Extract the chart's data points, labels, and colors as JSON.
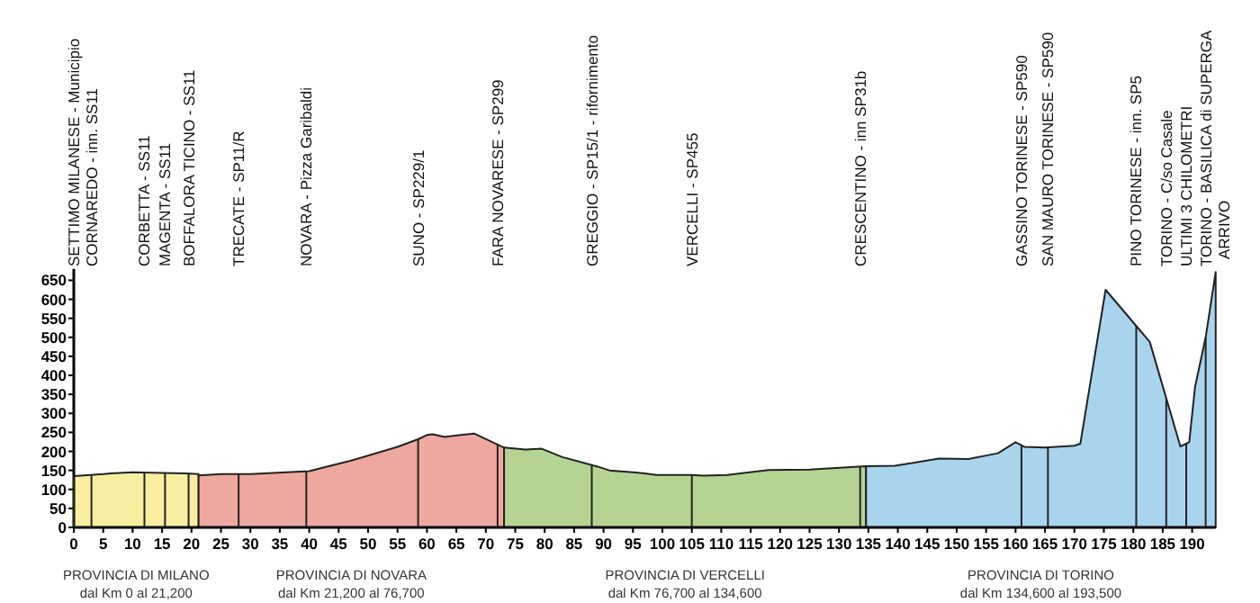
{
  "chart_data": {
    "type": "area",
    "xlim": [
      0,
      194
    ],
    "ylim": [
      0,
      680
    ],
    "xticks": [
      0,
      5,
      10,
      15,
      20,
      25,
      30,
      35,
      40,
      45,
      50,
      55,
      60,
      65,
      70,
      75,
      80,
      85,
      90,
      95,
      100,
      105,
      110,
      115,
      120,
      125,
      130,
      135,
      140,
      145,
      150,
      155,
      160,
      165,
      170,
      175,
      180,
      185,
      190
    ],
    "yticks": [
      0,
      50,
      100,
      150,
      200,
      250,
      300,
      350,
      400,
      450,
      500,
      550,
      600,
      650
    ],
    "grid": false,
    "series": [
      {
        "color": "#f8eea0",
        "x": [
          0,
          5,
          6.3,
          10,
          15,
          19,
          21.2
        ],
        "values": [
          135,
          140,
          142,
          145,
          143,
          142,
          140
        ]
      },
      {
        "color": "#eea8a0",
        "x": [
          21.2,
          25,
          30,
          40,
          43,
          47,
          55,
          58.5,
          60,
          61,
          63,
          68,
          73.1
        ],
        "values": [
          137,
          140,
          140,
          148,
          160,
          175,
          212,
          232,
          243,
          245,
          238,
          247,
          210
        ]
      },
      {
        "color": "#b5d494",
        "x": [
          73.1,
          76.7,
          79.5,
          83,
          89,
          91,
          95,
          97,
          99,
          103,
          105,
          107,
          111,
          118,
          125,
          134.6
        ],
        "values": [
          210,
          205,
          207,
          185,
          160,
          150,
          145,
          142,
          138,
          138,
          138,
          136,
          138,
          151,
          152,
          161
        ]
      },
      {
        "color": "#a8d4ee",
        "x": [
          134.6,
          139.5,
          147,
          152,
          157,
          160,
          161.5,
          165,
          170,
          171,
          175.3,
          182.8,
          188,
          189.5,
          190.5,
          192.3,
          194
        ],
        "values": [
          161,
          162,
          181,
          180,
          195,
          224,
          212,
          210,
          215,
          220,
          625,
          488,
          213,
          224,
          370,
          500,
          672
        ]
      }
    ],
    "annotations": [
      "PROVINCIA DI MILANO\ndal Km 0 al 21,200",
      "PROVINCIA DI NOVARA\ndal Km 21,200 al 76,700",
      "PROVINCIA DI VERCELLI\ndal Km 76,700 al 134,600",
      "PROVINCIA DI TORINO\ndal Km 134,600 al 193,500",
      "SETTIMO MILANESE - Municipio",
      "CORNAREDO - inn. SS11",
      "CORBETTA  - SS11",
      "MAGENTA  - SS11",
      "BOFFALORA TICINO  - SS11",
      "TRECATE - SP11/R",
      "NOVARA - Pizza Garibaldi",
      "SUNO  -  SP229/1",
      "FARA NOVARESE - SP299",
      "GREGGIO  - SP15/1  - rifornimento",
      "VERCELLI   - SP455",
      "CRESCENTINO - inn SP31b",
      "GASSINO TORINESE  - SP590",
      "SAN MAURO TORINESE  - SP590",
      "PINO TORINESE  - inn. SP5",
      "TORINO - C/so Casale",
      "ULTIMI 3 CHILOMETRI",
      "TORINO - BASILICA di SUPERGA\nARRIVO"
    ],
    "ref_lines": [
      {
        "axis": "x",
        "value": 0
      },
      {
        "axis": "x",
        "value": 3
      },
      {
        "axis": "x",
        "value": 12
      },
      {
        "axis": "x",
        "value": 15.5
      },
      {
        "axis": "x",
        "value": 19.5
      },
      {
        "axis": "x",
        "value": 28
      },
      {
        "axis": "x",
        "value": 39.5
      },
      {
        "axis": "x",
        "value": 58.5
      },
      {
        "axis": "x",
        "value": 72
      },
      {
        "axis": "x",
        "value": 88
      },
      {
        "axis": "x",
        "value": 105
      },
      {
        "axis": "x",
        "value": 133.6
      },
      {
        "axis": "x",
        "value": 161
      },
      {
        "axis": "x",
        "value": 165.5
      },
      {
        "axis": "x",
        "value": 180.5
      },
      {
        "axis": "x",
        "value": 185.6
      },
      {
        "axis": "x",
        "value": 189
      },
      {
        "axis": "x",
        "value": 192.3
      }
    ]
  }
}
